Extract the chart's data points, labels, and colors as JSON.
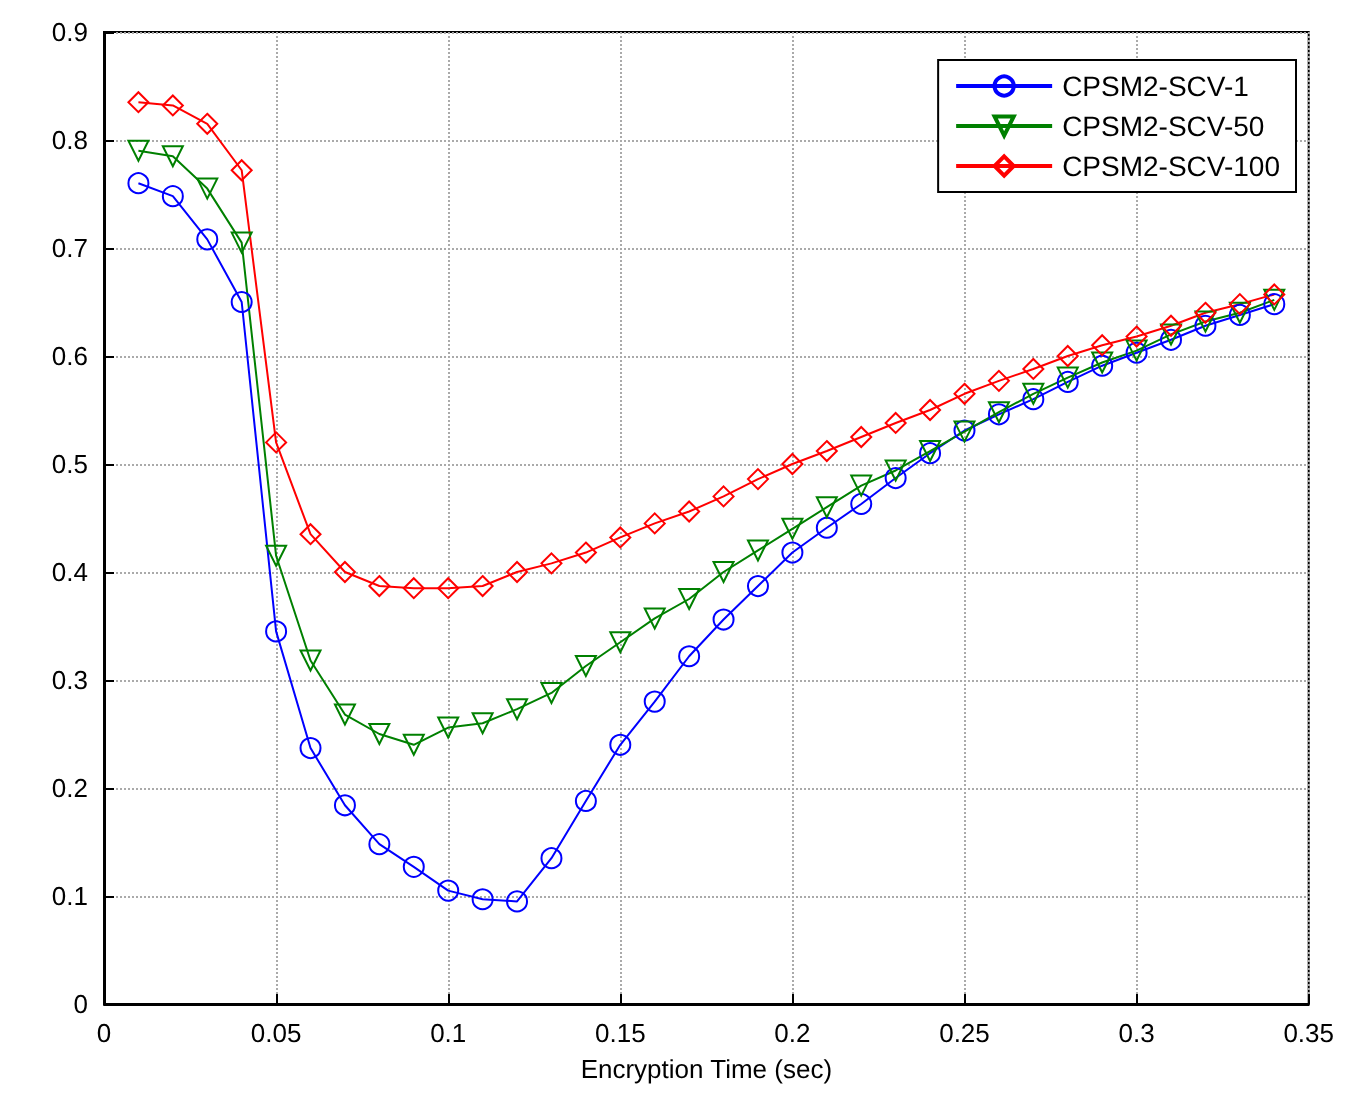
{
  "chart_data": {
    "type": "line",
    "xlabel": "Encryption Time (sec)",
    "x": [
      0.01,
      0.02,
      0.03,
      0.04,
      0.05,
      0.06,
      0.07,
      0.08,
      0.09,
      0.1,
      0.11,
      0.12,
      0.13,
      0.14,
      0.15,
      0.16,
      0.17,
      0.18,
      0.19,
      0.2,
      0.21,
      0.22,
      0.23,
      0.24,
      0.25,
      0.26,
      0.27,
      0.28,
      0.29,
      0.3,
      0.31,
      0.32,
      0.33,
      0.34
    ],
    "series": [
      {
        "name": "CPSM2-SCV-1",
        "color": "#0000ff",
        "marker": "circle",
        "values": [
          0.76,
          0.748,
          0.708,
          0.65,
          0.345,
          0.237,
          0.184,
          0.148,
          0.127,
          0.105,
          0.097,
          0.095,
          0.135,
          0.188,
          0.24,
          0.28,
          0.322,
          0.356,
          0.387,
          0.418,
          0.441,
          0.463,
          0.487,
          0.51,
          0.531,
          0.546,
          0.56,
          0.576,
          0.591,
          0.603,
          0.615,
          0.628,
          0.638,
          0.648
        ]
      },
      {
        "name": "CPSM2-SCV-50",
        "color": "#008000",
        "marker": "triangle",
        "values": [
          0.79,
          0.785,
          0.755,
          0.705,
          0.415,
          0.318,
          0.268,
          0.25,
          0.24,
          0.256,
          0.26,
          0.273,
          0.288,
          0.313,
          0.335,
          0.357,
          0.375,
          0.4,
          0.42,
          0.44,
          0.46,
          0.48,
          0.494,
          0.512,
          0.53,
          0.548,
          0.565,
          0.58,
          0.594,
          0.605,
          0.62,
          0.632,
          0.64,
          0.652
        ]
      },
      {
        "name": "CPSM2-SCV-100",
        "color": "#ff0000",
        "marker": "diamond",
        "values": [
          0.835,
          0.832,
          0.815,
          0.772,
          0.52,
          0.435,
          0.4,
          0.387,
          0.385,
          0.385,
          0.387,
          0.4,
          0.408,
          0.418,
          0.432,
          0.445,
          0.456,
          0.47,
          0.486,
          0.5,
          0.512,
          0.525,
          0.538,
          0.55,
          0.565,
          0.577,
          0.588,
          0.6,
          0.61,
          0.618,
          0.628,
          0.64,
          0.648,
          0.657
        ]
      }
    ],
    "xlim": [
      0,
      0.35
    ],
    "xticks": [
      0,
      0.05,
      0.1,
      0.15,
      0.2,
      0.25,
      0.3,
      0.35
    ],
    "ylim": [
      0,
      0.9
    ],
    "yticks": [
      0,
      0.1,
      0.2,
      0.3,
      0.4,
      0.5,
      0.6,
      0.7,
      0.8,
      0.9
    ],
    "grid": true,
    "legend": "top right",
    "line_style": "solid"
  }
}
